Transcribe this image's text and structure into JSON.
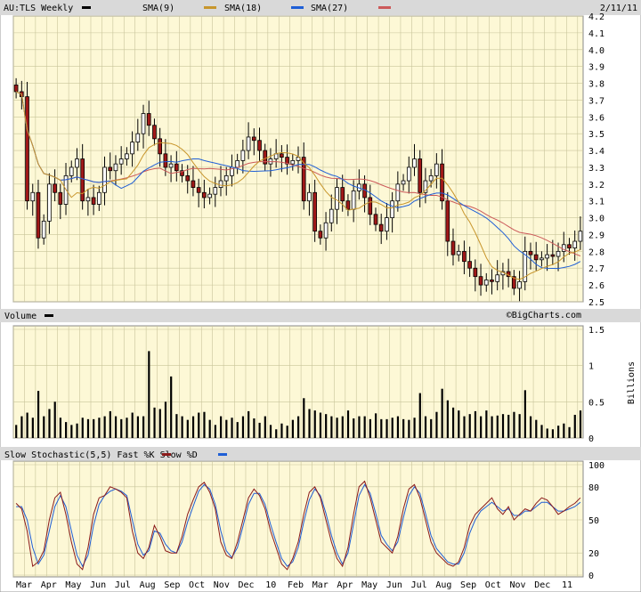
{
  "chart_data": [
    {
      "type": "candlestick",
      "title": "AU:TLS Weekly",
      "date": "2/11/11",
      "credit": "©BigCharts.com",
      "legend": [
        {
          "label": "AU:TLS Weekly",
          "color": "#000000"
        },
        {
          "label": "SMA(9)",
          "color": "#c8962c"
        },
        {
          "label": "SMA(18)",
          "color": "#1f5fd6"
        },
        {
          "label": "SMA(27)",
          "color": "#cc5a5a"
        }
      ],
      "ylim": [
        2.5,
        4.2
      ],
      "yticks": [
        "4.2",
        "4.1",
        "4.0",
        "3.9",
        "3.8",
        "3.7",
        "3.6",
        "3.5",
        "3.4",
        "3.3",
        "3.2",
        "3.1",
        "3.0",
        "2.9",
        "2.8",
        "2.7",
        "2.6",
        "2.5"
      ],
      "colors": {
        "up": "#ffffff",
        "down": "#a01818",
        "sma9": "#c8962c",
        "sma18": "#1f5fd6",
        "sma27": "#cc5a5a"
      },
      "close": [
        3.75,
        3.72,
        3.1,
        3.15,
        2.88,
        2.98,
        3.2,
        3.15,
        3.08,
        3.25,
        3.3,
        3.35,
        3.1,
        3.12,
        3.08,
        3.15,
        3.3,
        3.28,
        3.32,
        3.35,
        3.38,
        3.45,
        3.5,
        3.62,
        3.55,
        3.47,
        3.38,
        3.3,
        3.32,
        3.28,
        3.25,
        3.22,
        3.18,
        3.15,
        3.12,
        3.14,
        3.18,
        3.22,
        3.25,
        3.3,
        3.34,
        3.4,
        3.48,
        3.46,
        3.4,
        3.32,
        3.35,
        3.38,
        3.36,
        3.32,
        3.34,
        3.36,
        3.1,
        3.15,
        2.92,
        2.88,
        2.97,
        3.05,
        3.18,
        3.1,
        3.05,
        3.16,
        3.2,
        3.12,
        3.02,
        2.96,
        2.92,
        3.0,
        3.1,
        3.2,
        3.22,
        3.3,
        3.35,
        3.15,
        3.22,
        3.25,
        3.32,
        3.1,
        2.86,
        2.78,
        2.8,
        2.74,
        2.7,
        2.65,
        2.6,
        2.63,
        2.62,
        2.66,
        2.68,
        2.65,
        2.58,
        2.62,
        2.8,
        2.78,
        2.75,
        2.76,
        2.78,
        2.77,
        2.8,
        2.84,
        2.82,
        2.86,
        2.92
      ],
      "volume_label": "Volume",
      "volume_unit": "Billions",
      "volume_yticks": [
        "1.5",
        "1",
        "0.5",
        "0"
      ],
      "volume": [
        0.18,
        0.3,
        0.35,
        0.28,
        0.65,
        0.3,
        0.4,
        0.5,
        0.28,
        0.22,
        0.18,
        0.2,
        0.28,
        0.26,
        0.26,
        0.28,
        0.3,
        0.37,
        0.3,
        0.26,
        0.28,
        0.35,
        0.3,
        0.3,
        1.2,
        0.42,
        0.4,
        0.5,
        0.85,
        0.33,
        0.3,
        0.25,
        0.3,
        0.35,
        0.36,
        0.25,
        0.18,
        0.3,
        0.25,
        0.28,
        0.22,
        0.3,
        0.37,
        0.27,
        0.21,
        0.3,
        0.18,
        0.12,
        0.2,
        0.17,
        0.25,
        0.3,
        0.55,
        0.4,
        0.38,
        0.35,
        0.33,
        0.3,
        0.28,
        0.3,
        0.38,
        0.27,
        0.3,
        0.3,
        0.26,
        0.34,
        0.26,
        0.26,
        0.28,
        0.3,
        0.26,
        0.25,
        0.28,
        0.62,
        0.3,
        0.26,
        0.36,
        0.68,
        0.52,
        0.42,
        0.38,
        0.3,
        0.33,
        0.37,
        0.3,
        0.38,
        0.3,
        0.31,
        0.33,
        0.32,
        0.36,
        0.33,
        0.66,
        0.3,
        0.25,
        0.18,
        0.13,
        0.12,
        0.17,
        0.2,
        0.15,
        0.32,
        0.38
      ],
      "stoch_label": "Slow Stochastic(5,5) Fast %K   Slow %D",
      "stoch_yticks": [
        "100",
        "80",
        "50",
        "20",
        "0"
      ],
      "fast_k": [
        65,
        60,
        40,
        8,
        12,
        22,
        50,
        70,
        75,
        55,
        30,
        10,
        5,
        25,
        55,
        70,
        72,
        80,
        78,
        75,
        70,
        40,
        20,
        15,
        25,
        45,
        35,
        22,
        20,
        20,
        35,
        55,
        68,
        80,
        84,
        75,
        60,
        30,
        18,
        15,
        30,
        50,
        70,
        78,
        72,
        60,
        40,
        25,
        10,
        5,
        15,
        30,
        55,
        75,
        80,
        70,
        50,
        30,
        15,
        8,
        25,
        55,
        80,
        85,
        70,
        50,
        30,
        25,
        20,
        35,
        60,
        78,
        82,
        70,
        50,
        30,
        20,
        15,
        10,
        8,
        12,
        25,
        45,
        55,
        60,
        65,
        70,
        60,
        55,
        62,
        50,
        55,
        60,
        58,
        65,
        70,
        68,
        62,
        55,
        58,
        62,
        65,
        70
      ],
      "slow_d": [
        62,
        62,
        50,
        25,
        10,
        18,
        40,
        62,
        72,
        62,
        40,
        18,
        8,
        18,
        45,
        64,
        72,
        76,
        78,
        76,
        72,
        50,
        28,
        18,
        22,
        40,
        38,
        28,
        22,
        20,
        30,
        48,
        62,
        76,
        82,
        78,
        64,
        40,
        22,
        16,
        25,
        44,
        64,
        74,
        74,
        64,
        46,
        30,
        15,
        8,
        12,
        25,
        48,
        68,
        78,
        72,
        56,
        36,
        20,
        10,
        20,
        46,
        72,
        82,
        74,
        56,
        36,
        28,
        22,
        30,
        52,
        72,
        80,
        74,
        56,
        36,
        24,
        18,
        12,
        10,
        10,
        20,
        38,
        50,
        58,
        62,
        66,
        62,
        58,
        60,
        54,
        54,
        58,
        58,
        62,
        66,
        66,
        62,
        58,
        58,
        60,
        62,
        66
      ],
      "x_ticks": [
        "Mar",
        "Apr",
        "May",
        "Jun",
        "Jul",
        "Aug",
        "Sep",
        "Oct",
        "Nov",
        "Dec",
        "10",
        "Feb",
        "Mar",
        "Apr",
        "May",
        "Jun",
        "Jul",
        "Aug",
        "Sep",
        "Oct",
        "Nov",
        "Dec",
        "11"
      ]
    }
  ]
}
